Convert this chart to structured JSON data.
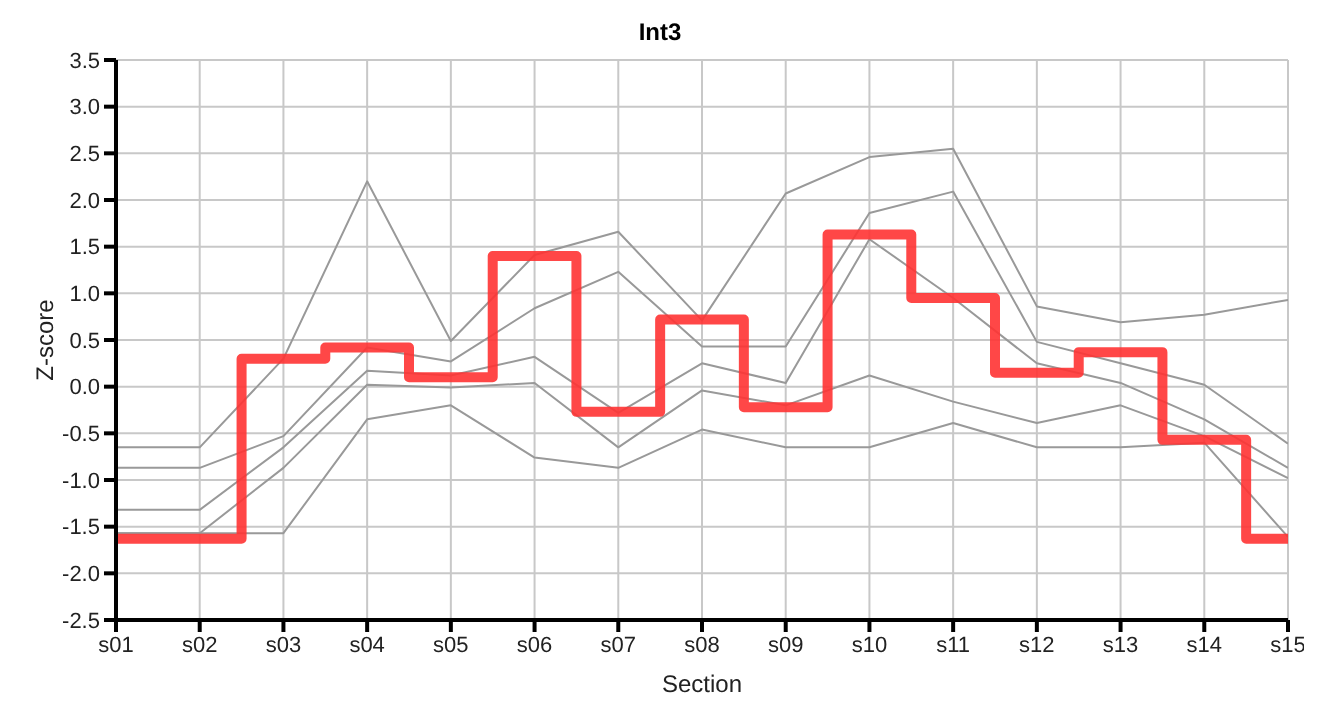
{
  "chart_data": {
    "type": "line",
    "title": "Int3",
    "xlabel": "Section",
    "ylabel": "Z-score",
    "categories": [
      "s01",
      "s02",
      "s03",
      "s04",
      "s05",
      "s06",
      "s07",
      "s08",
      "s09",
      "s10",
      "s11",
      "s12",
      "s13",
      "s14",
      "s15"
    ],
    "ylim": [
      -2.5,
      3.5
    ],
    "yticks": [
      {
        "value": -2.5,
        "label": "-2.5"
      },
      {
        "value": -2,
        "label": "-2.0"
      },
      {
        "value": -1.5,
        "label": "-1.5"
      },
      {
        "value": -1,
        "label": "-1.0"
      },
      {
        "value": -0.5,
        "label": "-0.5"
      },
      {
        "value": 0,
        "label": "0.0"
      },
      {
        "value": 0.5,
        "label": "0.5"
      },
      {
        "value": 1,
        "label": "1.0"
      },
      {
        "value": 1.5,
        "label": "1.5"
      },
      {
        "value": 2,
        "label": "2.0"
      },
      {
        "value": 2.5,
        "label": "2.5"
      },
      {
        "value": 3,
        "label": "3.0"
      },
      {
        "value": 3.5,
        "label": "3.5"
      }
    ],
    "grid": true,
    "marker": "none",
    "series": [
      {
        "color": "#999999",
        "values": [
          -0.65,
          -0.65,
          0.3,
          2.2,
          0.49,
          1.41,
          1.66,
          0.71,
          2.07,
          2.46,
          2.55,
          0.86,
          0.69,
          0.77,
          0.93
        ]
      },
      {
        "color": "#999999",
        "values": [
          -0.87,
          -0.87,
          -0.53,
          0.42,
          0.27,
          0.84,
          1.23,
          0.43,
          0.43,
          1.86,
          2.09,
          0.48,
          0.25,
          0.02,
          -0.61
        ]
      },
      {
        "color": "#999999",
        "values": [
          -1.32,
          -1.32,
          -0.65,
          0.17,
          0.12,
          0.32,
          -0.28,
          0.25,
          0.04,
          1.58,
          0.95,
          0.25,
          0.04,
          -0.35,
          -0.87
        ]
      },
      {
        "color": "#999999",
        "values": [
          -1.57,
          -1.57,
          -0.87,
          0.02,
          -0.01,
          0.04,
          -0.65,
          -0.04,
          -0.2,
          0.12,
          -0.16,
          -0.39,
          -0.2,
          -0.53,
          -0.98
        ]
      },
      {
        "color": "#999999",
        "values": [
          -1.57,
          -1.57,
          -1.57,
          -0.35,
          -0.2,
          -0.76,
          -0.87,
          -0.46,
          -0.65,
          -0.65,
          -0.39,
          -0.65,
          -0.65,
          -0.6,
          -1.61
        ]
      },
      {
        "type": "step",
        "color": "#ff3333",
        "values": [
          -1.63,
          -1.63,
          0.3,
          0.42,
          0.1,
          1.4,
          -0.27,
          0.72,
          -0.22,
          1.63,
          0.95,
          0.15,
          0.37,
          -0.57,
          -1.63
        ]
      }
    ]
  }
}
